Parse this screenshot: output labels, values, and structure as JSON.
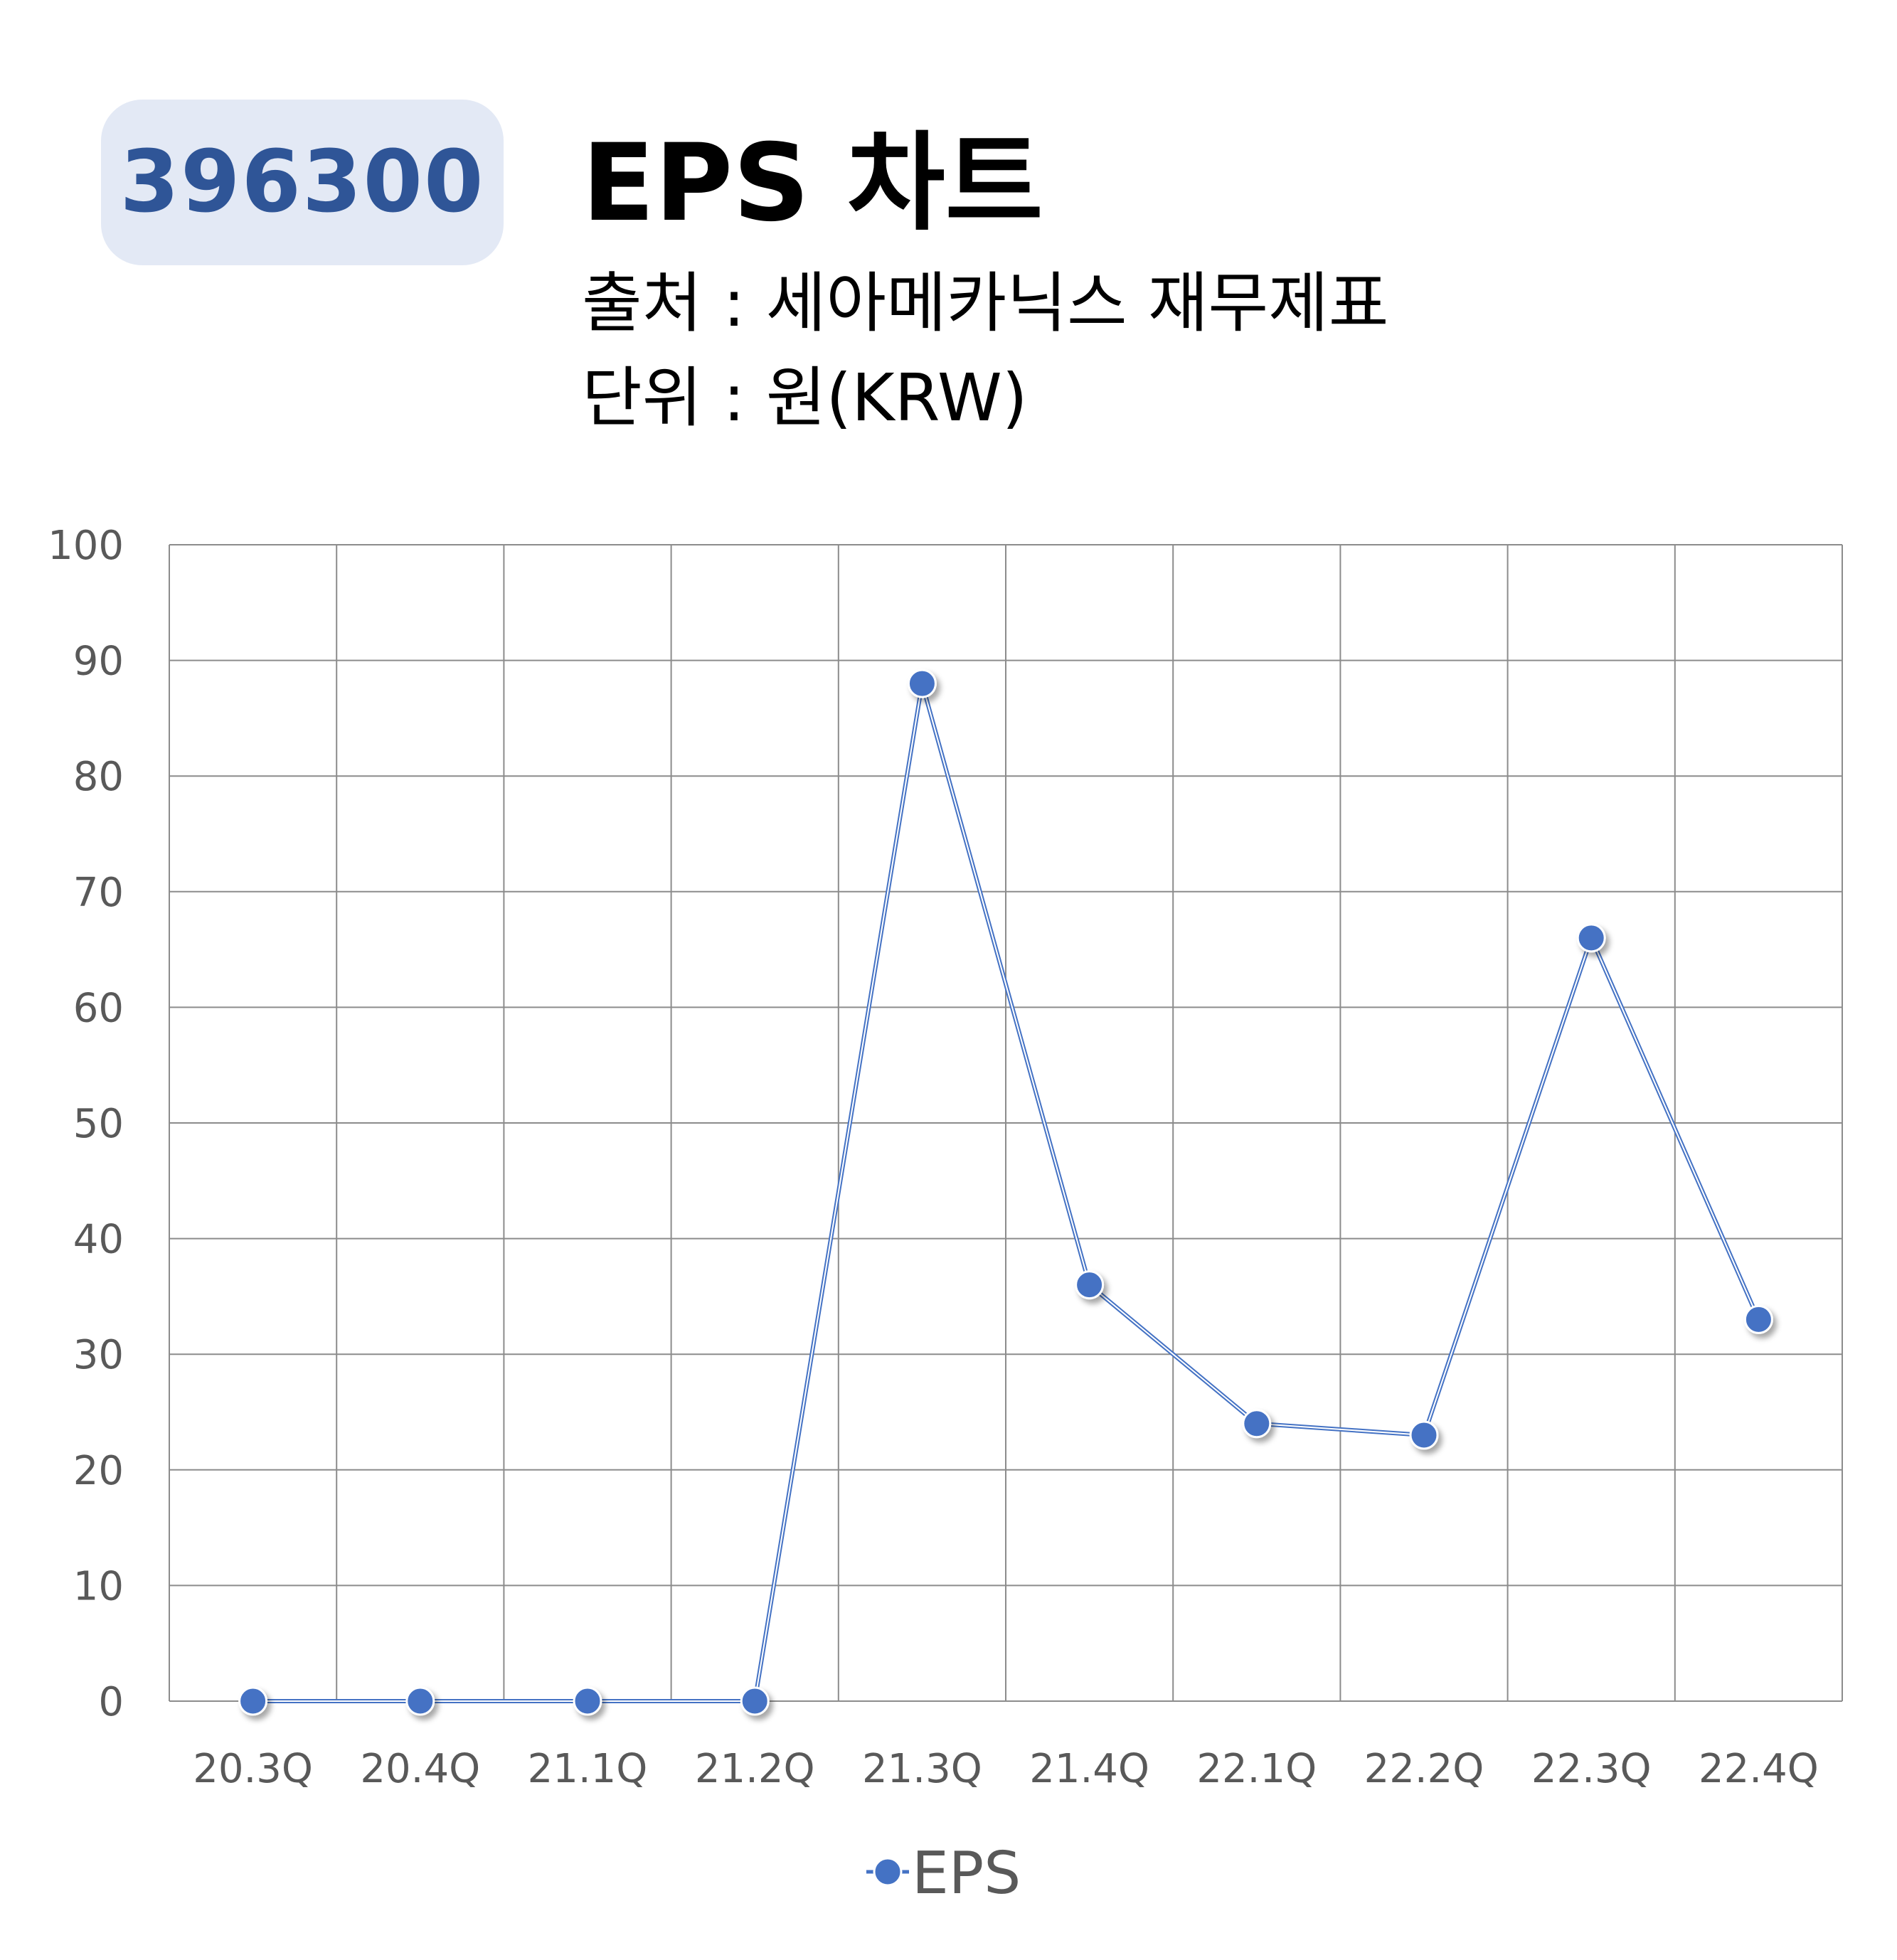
{
  "header": {
    "ticker": "396300",
    "title": "EPS 차트",
    "source": "출처 : 세아메카닉스 재무제표",
    "unit": "단위 : 원(KRW)"
  },
  "colors": {
    "badge_bg": "#e3e9f5",
    "badge_text": "#2f5597",
    "series": "#4472c4",
    "grid": "#8c8c8c",
    "tick_text": "#595959"
  },
  "chart_data": {
    "type": "line",
    "title": "",
    "xlabel": "",
    "ylabel": "",
    "categories": [
      "20.3Q",
      "20.4Q",
      "21.1Q",
      "21.2Q",
      "21.3Q",
      "21.4Q",
      "22.1Q",
      "22.2Q",
      "22.3Q",
      "22.4Q"
    ],
    "series": [
      {
        "name": "EPS",
        "values": [
          0,
          0,
          0,
          0,
          88,
          36,
          24,
          23,
          66,
          33
        ]
      }
    ],
    "ylim": [
      0,
      100
    ],
    "yticks": [
      0,
      10,
      20,
      30,
      40,
      50,
      60,
      70,
      80,
      90,
      100
    ],
    "grid": true,
    "legend": "bottom"
  }
}
